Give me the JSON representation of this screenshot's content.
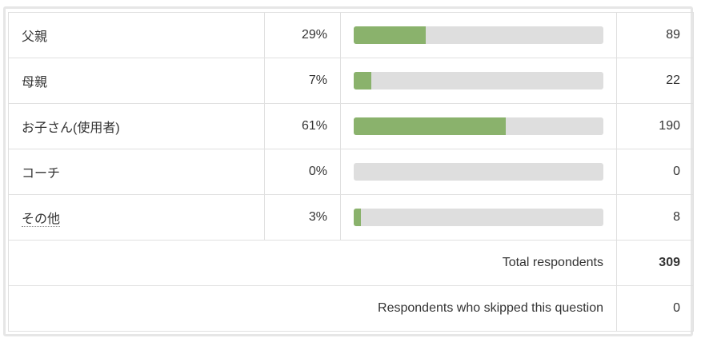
{
  "table": {
    "rows": [
      {
        "label": "父親",
        "percent": 29,
        "percent_label": "29%",
        "count": 89
      },
      {
        "label": "母親",
        "percent": 7,
        "percent_label": "7%",
        "count": 22
      },
      {
        "label": "お子さん(使用者)",
        "percent": 61,
        "percent_label": "61%",
        "count": 190
      },
      {
        "label": "コーチ",
        "percent": 0,
        "percent_label": "0%",
        "count": 0
      },
      {
        "label": "その他",
        "percent": 3,
        "percent_label": "3%",
        "count": 8
      }
    ],
    "percent_range": [
      0,
      100
    ],
    "bar_color": "#8ab26c",
    "track_color": "#dedede",
    "total_label": "Total respondents",
    "total": 309,
    "skipped_label": "Respondents who skipped this question",
    "skipped": 0
  }
}
